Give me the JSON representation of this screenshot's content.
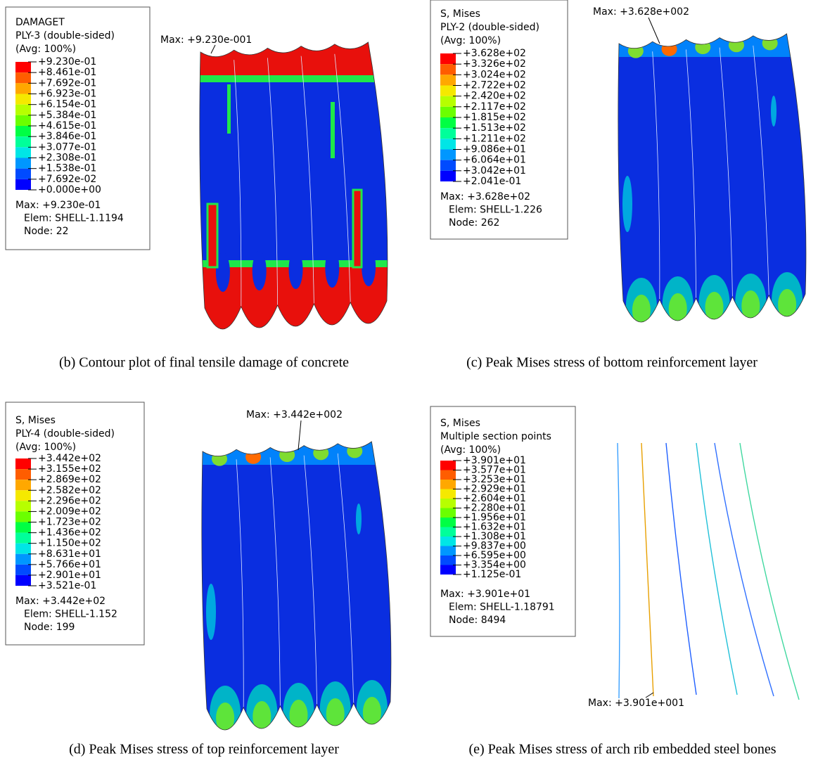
{
  "panels": [
    {
      "legend": {
        "lines": [
          "DAMAGET",
          "PLY-3 (double-sided)",
          "(Avg: 100%)"
        ],
        "values": [
          "+9.230e-01",
          "+8.461e-01",
          "+7.692e-01",
          "+6.923e-01",
          "+6.154e-01",
          "+5.384e-01",
          "+4.615e-01",
          "+3.846e-01",
          "+3.077e-01",
          "+2.308e-01",
          "+1.538e-01",
          "+7.692e-02",
          "+0.000e+00"
        ],
        "stats": [
          "Max: +9.230e-01",
          "Elem: SHELL-1.1194",
          "Node: 22"
        ]
      },
      "max_label": "Max: +9.230e-001",
      "caption": "(b) Contour plot of final tensile damage of concrete"
    },
    {
      "legend": {
        "lines": [
          "S, Mises",
          "PLY-2 (double-sided)",
          "(Avg: 100%)"
        ],
        "values": [
          "+3.628e+02",
          "+3.326e+02",
          "+3.024e+02",
          "+2.722e+02",
          "+2.420e+02",
          "+2.117e+02",
          "+1.815e+02",
          "+1.513e+02",
          "+1.211e+02",
          "+9.086e+01",
          "+6.064e+01",
          "+3.042e+01",
          "+2.041e-01"
        ],
        "stats": [
          "Max: +3.628e+02",
          "Elem: SHELL-1.226",
          "Node: 262"
        ]
      },
      "max_label": "Max: +3.628e+002",
      "caption": "(c) Peak Mises stress of bottom reinforcement layer"
    },
    {
      "legend": {
        "lines": [
          "S, Mises",
          "PLY-4 (double-sided)",
          "(Avg: 100%)"
        ],
        "values": [
          "+3.442e+02",
          "+3.155e+02",
          "+2.869e+02",
          "+2.582e+02",
          "+2.296e+02",
          "+2.009e+02",
          "+1.723e+02",
          "+1.436e+02",
          "+1.150e+02",
          "+8.631e+01",
          "+5.766e+01",
          "+2.901e+01",
          "+3.521e-01"
        ],
        "stats": [
          "Max: +3.442e+02",
          "Elem: SHELL-1.152",
          "Node: 199"
        ]
      },
      "max_label": "Max: +3.442e+002",
      "caption": "(d) Peak Mises stress of top reinforcement layer"
    },
    {
      "legend": {
        "lines": [
          "S, Mises",
          "Multiple section points",
          "(Avg: 100%)"
        ],
        "values": [
          "+3.901e+01",
          "+3.577e+01",
          "+3.253e+01",
          "+2.929e+01",
          "+2.604e+01",
          "+2.280e+01",
          "+1.956e+01",
          "+1.632e+01",
          "+1.308e+01",
          "+9.837e+00",
          "+6.595e+00",
          "+3.354e+00",
          "+1.125e-01"
        ],
        "stats": [
          "Max: +3.901e+01",
          "Elem: SHELL-1.18791",
          "Node: 8494"
        ]
      },
      "max_label": "Max: +3.901e+001",
      "caption": "(e) Peak Mises stress of arch rib embedded steel bones"
    }
  ]
}
